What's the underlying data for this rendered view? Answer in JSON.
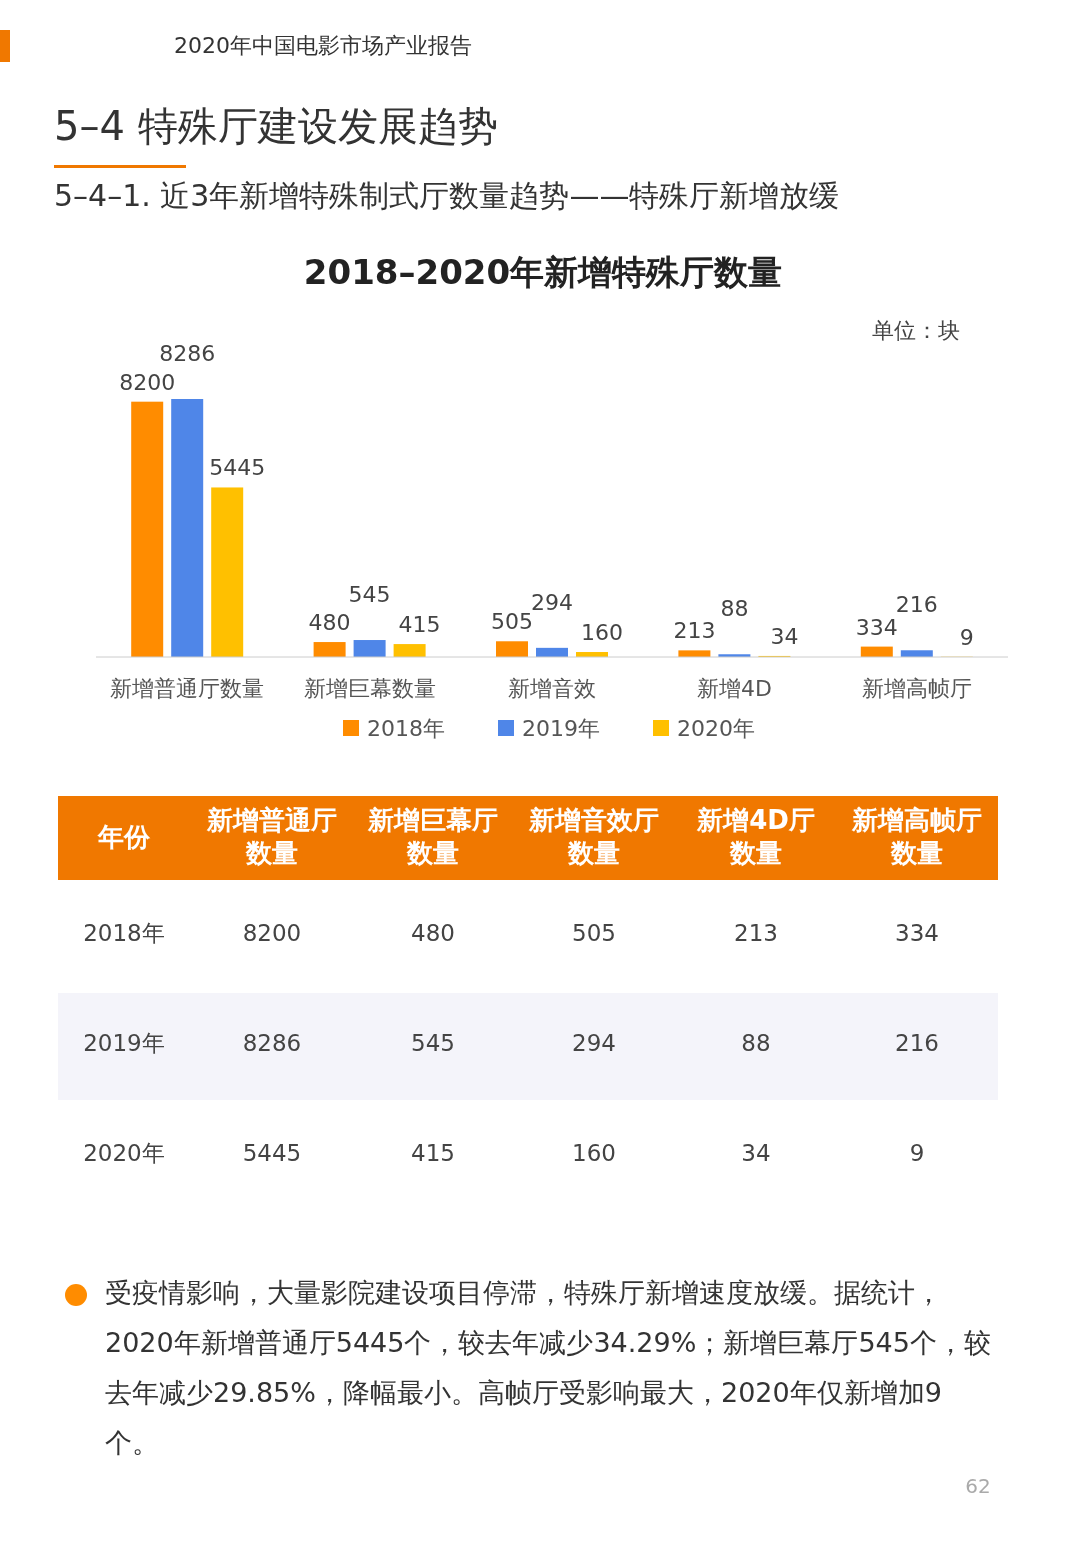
{
  "chart_data": {
    "type": "bar",
    "title": "2018–2020年新增特殊厅数量",
    "subtitle": "5–4–1. 近3年新增特殊制式厅数量趋势——特殊厅新增放缓",
    "annotations": [
      "2020年中国电影市场产业报告",
      "5–4  特殊厅建设发展趋势",
      "单位：块",
      "受疫情影响，大量影院建设项目停滞，特殊厅新增速度放缓。据统计，2020年新增普通厅5445个，较去年减少34.29%；新增巨幕厅545个，较去年减少29.85%，降幅最小。高帧厅受影响最大，2020年仅新增加9个。",
      "62",
      "年份",
      "新增普通厅数量",
      "新增巨幕厅数量",
      "新增音效厅数量",
      "新增4D厅数量",
      "新增高帧厅数量"
    ],
    "categories": [
      "新增普通厅数量",
      "新增巨幕数量",
      "新增音效",
      "新增4D",
      "新增高帧厅"
    ],
    "series": [
      {
        "name": "2018年",
        "color": "#ff8c00",
        "values": [
          8200,
          480,
          505,
          213,
          334
        ],
        "value_labels": [
          "8200",
          "480",
          "505",
          "213",
          "334"
        ]
      },
      {
        "name": "2019年",
        "color": "#4f86e8",
        "values": [
          8286,
          545,
          294,
          88,
          216
        ],
        "value_labels": [
          "8286",
          "545",
          "294",
          "88",
          "216"
        ]
      },
      {
        "name": "2020年",
        "color": "#ffc000",
        "values": [
          5445,
          415,
          160,
          34,
          9
        ],
        "value_labels": [
          "5445",
          "415",
          "160",
          "34",
          "9"
        ]
      }
    ],
    "legend": "bottom"
  }
}
